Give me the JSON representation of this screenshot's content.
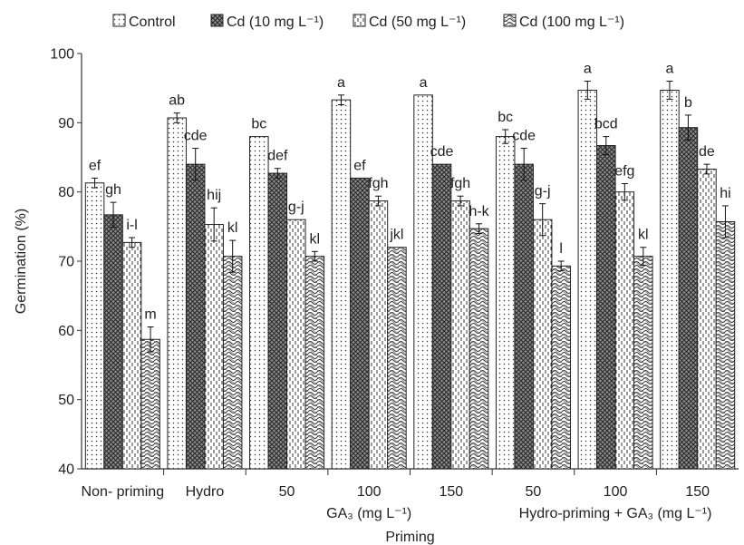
{
  "chart_data": {
    "type": "bar",
    "ylabel": "Germination (%)",
    "xlabel": "Priming",
    "ylim": [
      40,
      100
    ],
    "yticks": [
      40,
      50,
      60,
      70,
      80,
      90,
      100
    ],
    "grid": false,
    "legend_position": "top",
    "categories": [
      "Non- priming",
      "Hydro",
      "50",
      "100",
      "150",
      "50",
      "100",
      "150"
    ],
    "group_labels": [
      {
        "text": "GA₃ (mg L⁻¹)",
        "span": [
          2,
          4
        ]
      },
      {
        "text": "Hydro-priming + GA₃ (mg L⁻¹)",
        "span": [
          5,
          7
        ]
      }
    ],
    "series": [
      {
        "name": "Control",
        "pattern": "dots",
        "values": [
          81.3,
          90.7,
          88.0,
          93.3,
          94.0,
          88.0,
          94.7,
          94.7
        ],
        "errors": [
          0.7,
          0.7,
          0,
          0.7,
          0,
          1.0,
          1.3,
          1.3
        ],
        "letters": [
          "ef",
          "ab",
          "bc",
          "a",
          "a",
          "bc",
          "a",
          "a"
        ]
      },
      {
        "name": "Cd (10 mg L⁻¹)",
        "pattern": "crosshatch",
        "values": [
          76.7,
          84.0,
          82.7,
          82.0,
          84.0,
          84.0,
          86.7,
          89.3
        ],
        "errors": [
          1.8,
          2.3,
          0.7,
          0,
          0,
          2.3,
          1.3,
          1.8
        ],
        "letters": [
          "gh",
          "cde",
          "def",
          "ef",
          "cde",
          "cde",
          "bcd",
          "b"
        ]
      },
      {
        "name": "Cd (50 mg L⁻¹)",
        "pattern": "dashes",
        "values": [
          72.7,
          75.3,
          76.0,
          78.7,
          78.7,
          76.0,
          80.0,
          83.3
        ],
        "errors": [
          0.7,
          2.4,
          0,
          0.7,
          0.7,
          2.3,
          1.2,
          0.7
        ],
        "letters": [
          "i-l",
          "hij",
          "g-j",
          "fgh",
          "fgh",
          "g-j",
          "efg",
          "de"
        ]
      },
      {
        "name": "Cd (100 mg L⁻¹)",
        "pattern": "waves",
        "values": [
          58.7,
          70.7,
          70.7,
          72.0,
          74.7,
          69.3,
          70.7,
          75.7
        ],
        "errors": [
          1.8,
          2.3,
          0.7,
          0,
          0.7,
          0.7,
          1.3,
          2.3
        ],
        "letters": [
          "m",
          "kl",
          "kl",
          "jkl",
          "h-k",
          "l",
          "kl",
          "hi"
        ]
      }
    ]
  }
}
